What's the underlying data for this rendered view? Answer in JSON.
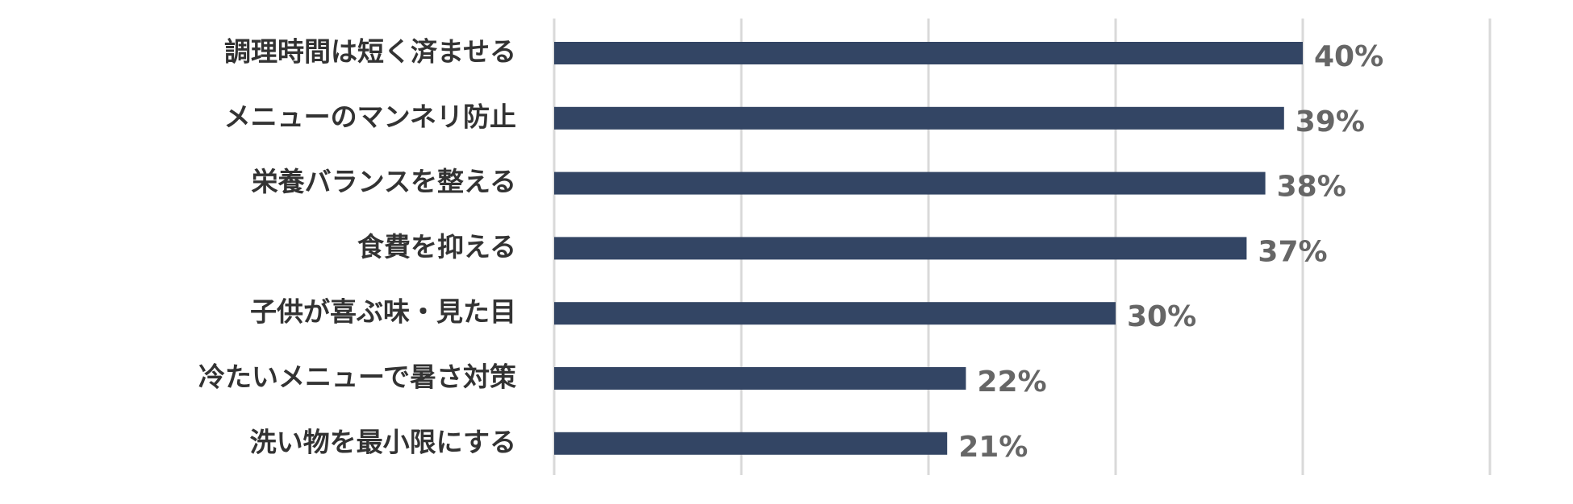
{
  "chart_data": {
    "type": "bar",
    "orientation": "horizontal",
    "categories": [
      "調理時間は短く済ませる",
      "メニューのマンネリ防止",
      "栄養バランスを整える",
      "食費を抑える",
      "子供が喜ぶ味・見た目",
      "冷たいメニューで暑さ対策",
      "洗い物を最小限にする"
    ],
    "values": [
      40,
      39,
      38,
      37,
      30,
      22,
      21
    ],
    "value_labels": [
      "40%",
      "39%",
      "38%",
      "37%",
      "30%",
      "22%",
      "21%"
    ],
    "color": "#334564",
    "xlim": [
      0,
      50
    ],
    "xticks": [
      0,
      10,
      20,
      30,
      40,
      50
    ],
    "grid": true
  }
}
